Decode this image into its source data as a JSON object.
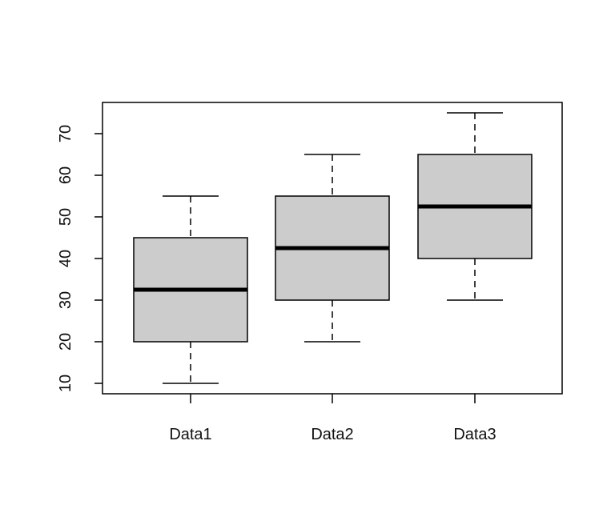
{
  "chart_data": {
    "type": "boxplot",
    "title": "",
    "xlabel": "",
    "ylabel": "",
    "categories": [
      "Data1",
      "Data2",
      "Data3"
    ],
    "series": [
      {
        "name": "Data1",
        "min": 10,
        "q1": 20,
        "median": 32.5,
        "q3": 45,
        "max": 55
      },
      {
        "name": "Data2",
        "min": 20,
        "q1": 30,
        "median": 42.5,
        "q3": 55,
        "max": 65
      },
      {
        "name": "Data3",
        "min": 30,
        "q1": 40,
        "median": 52.5,
        "q3": 65,
        "max": 75
      }
    ],
    "yticks": [
      "10",
      "20",
      "30",
      "40",
      "50",
      "60",
      "70"
    ],
    "ylim": [
      7.5,
      77.5
    ],
    "grid": false,
    "box_fill": "#cccccc",
    "line_color": "#000000"
  }
}
